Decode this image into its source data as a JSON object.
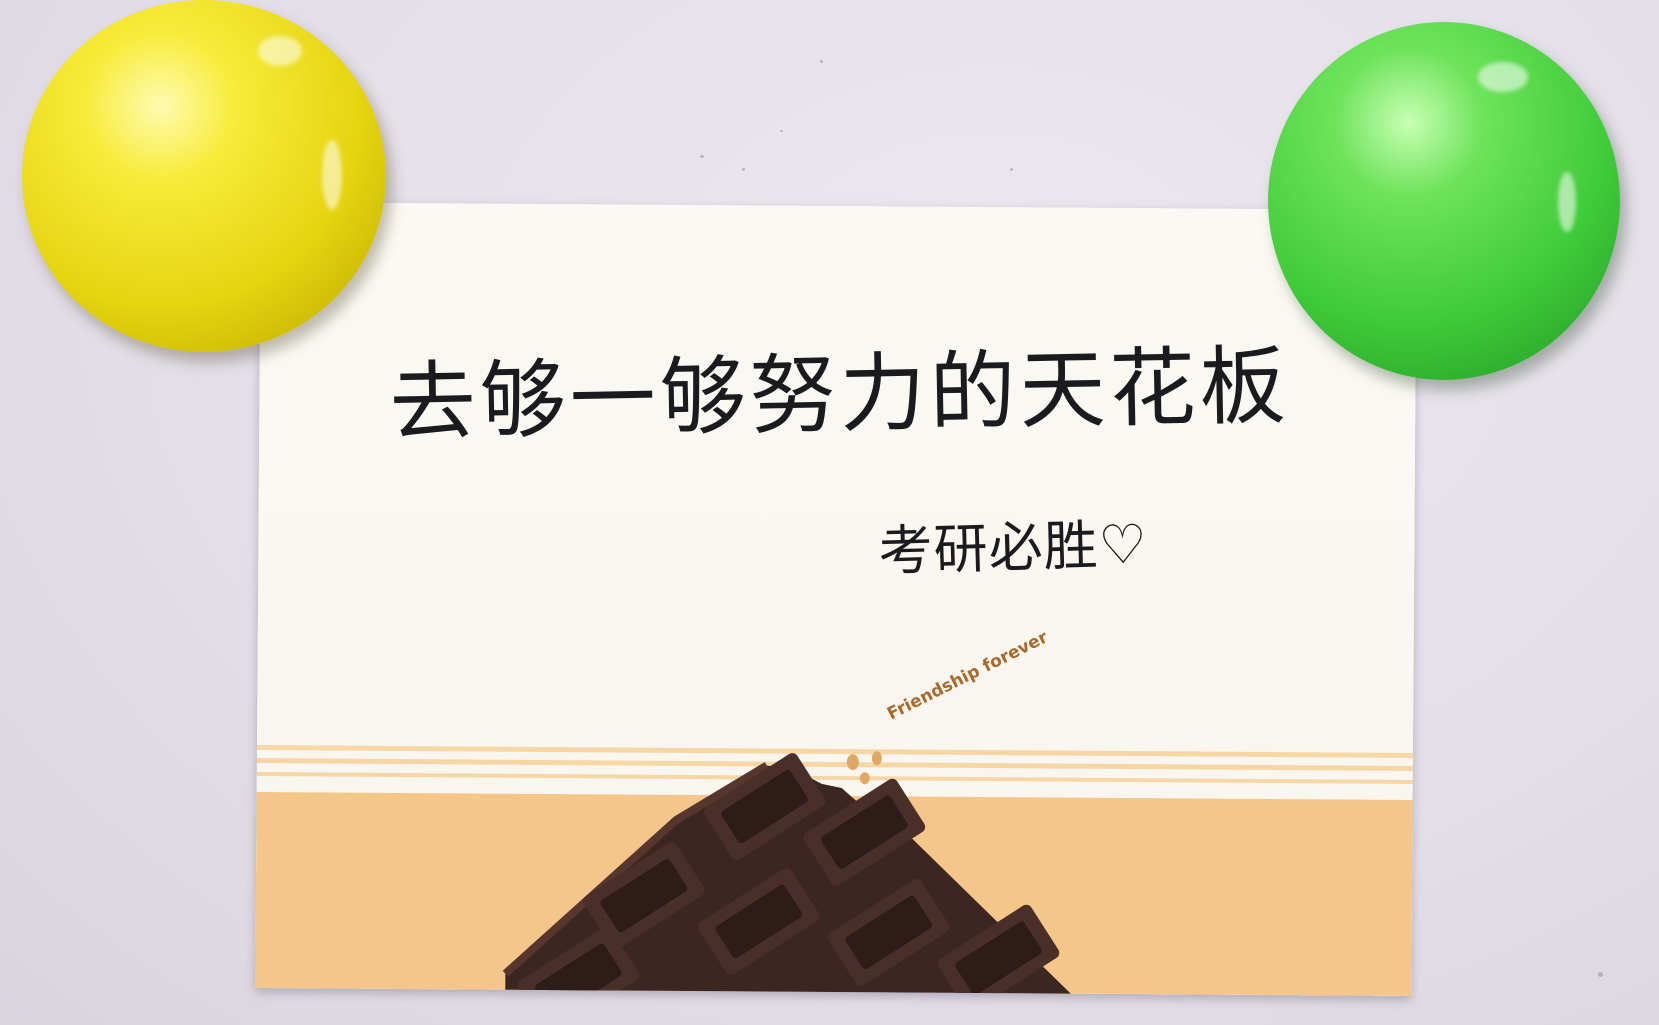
{
  "scene": {
    "background_color": "#e4dfe8",
    "card_color": "#f8f5ee",
    "card_band_color": "#f5c689",
    "chocolate_color": "#3b2622"
  },
  "card": {
    "main_message": "去够一够努力的天花板",
    "sub_message": "考研必胜♡",
    "tagline": "Friendship forever"
  },
  "magnets": [
    {
      "name": "yellow-magnet",
      "color": "#e6d410"
    },
    {
      "name": "green-magnet",
      "color": "#3fcb39"
    }
  ]
}
